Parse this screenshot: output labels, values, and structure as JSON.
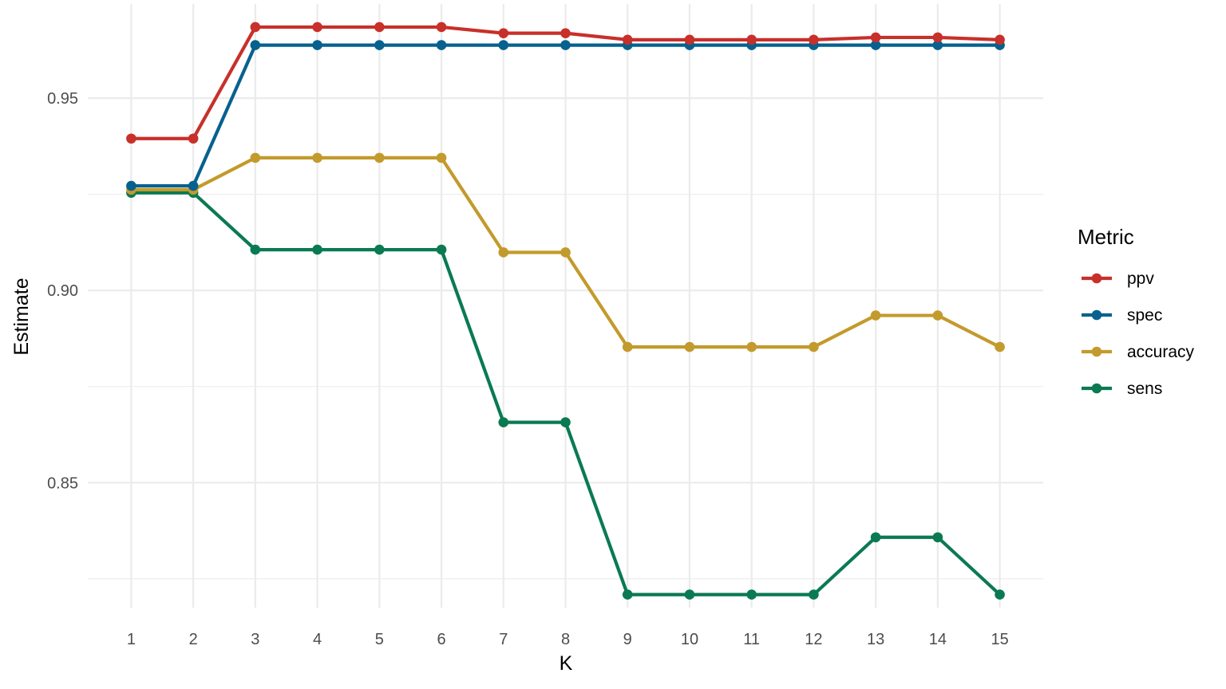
{
  "chart_data": {
    "type": "line",
    "xlabel": "K",
    "ylabel": "Estimate",
    "x": [
      1,
      2,
      3,
      4,
      5,
      6,
      7,
      8,
      9,
      10,
      11,
      12,
      13,
      14,
      15
    ],
    "xlim": [
      0.3,
      15.7
    ],
    "ylim": [
      0.8175,
      0.9745
    ],
    "yticks": [
      0.85,
      0.9,
      0.95
    ],
    "ytick_labels": [
      "0.85",
      "0.90",
      "0.95"
    ],
    "grid": true,
    "legend": {
      "title": "Metric",
      "position": "right"
    },
    "series": [
      {
        "name": "ppv",
        "color": "#C8302A",
        "values": [
          0.9395,
          0.9395,
          0.9685,
          0.9685,
          0.9685,
          0.9685,
          0.9669,
          0.9669,
          0.9652,
          0.9652,
          0.9652,
          0.9652,
          0.9658,
          0.9658,
          0.9652
        ]
      },
      {
        "name": "spec",
        "color": "#06618F",
        "values": [
          0.9272,
          0.9272,
          0.9638,
          0.9638,
          0.9638,
          0.9638,
          0.9638,
          0.9638,
          0.9638,
          0.9638,
          0.9638,
          0.9638,
          0.9638,
          0.9638,
          0.9638
        ]
      },
      {
        "name": "accuracy",
        "color": "#C39A2C",
        "values": [
          0.9262,
          0.9262,
          0.9345,
          0.9345,
          0.9345,
          0.9345,
          0.9099,
          0.9099,
          0.8853,
          0.8853,
          0.8853,
          0.8853,
          0.8935,
          0.8935,
          0.8853
        ]
      },
      {
        "name": "sens",
        "color": "#0A7A52",
        "values": [
          0.9254,
          0.9254,
          0.9106,
          0.9106,
          0.9106,
          0.9106,
          0.8657,
          0.8657,
          0.8209,
          0.8209,
          0.8209,
          0.8209,
          0.8358,
          0.8358,
          0.8209
        ]
      }
    ]
  },
  "colors": {
    "grid": "#EBEBEB",
    "tick_text": "#4D4D4D",
    "background": "#FFFFFF"
  }
}
